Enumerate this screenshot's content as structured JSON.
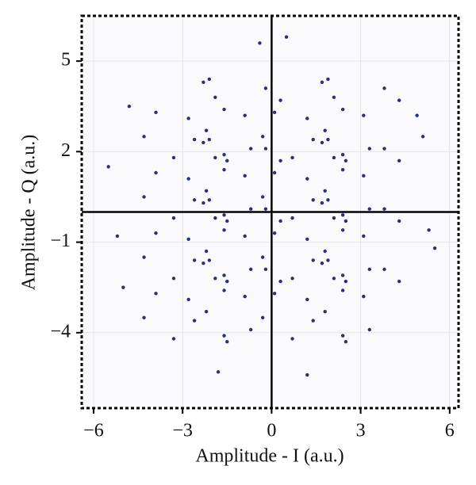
{
  "chart_data": {
    "type": "scatter",
    "x_label": "Amplitude - I (a.u.)",
    "y_label": "Amplitude - Q (a.u.)",
    "xlim": [
      -6.4,
      6.3
    ],
    "ylim": [
      -6.5,
      6.5
    ],
    "xticks": [
      {
        "value": -6,
        "label": "−6"
      },
      {
        "value": -3,
        "label": "−3"
      },
      0,
      3,
      6
    ],
    "yticks": [
      {
        "value": -4,
        "label": "−4"
      },
      {
        "value": -1,
        "label": "−1"
      },
      2,
      5
    ],
    "grid": true,
    "series": [
      {
        "color": "#2b2d85",
        "x": [
          -2.6,
          -3.9,
          -1.9,
          -3.3,
          -2.3,
          -4.3,
          -2.8,
          -1.6,
          -1.6,
          -0.7,
          -0.2,
          -2.2,
          0.3,
          -1.5,
          -0.9,
          -2.1,
          1.4,
          0.1,
          2.1,
          0.7,
          1.7,
          -0.3,
          1.2,
          2.4,
          2.4,
          3.3,
          3.8,
          1.8,
          4.3,
          2.5,
          3.1,
          1.9,
          -2.6,
          -3.9,
          -1.9,
          -3.3,
          -2.3,
          -4.3,
          -2.8,
          -1.6,
          -1.6,
          -0.7,
          -0.2,
          -2.2,
          0.3,
          -1.5,
          -0.9,
          -2.1,
          1.4,
          0.1,
          2.1,
          0.7,
          1.7,
          -0.3,
          1.2,
          2.4,
          2.4,
          3.3,
          3.8,
          1.8,
          4.3,
          2.5,
          3.1,
          1.9,
          -2.6,
          -3.9,
          -1.9,
          -3.3,
          -2.3,
          -4.3,
          -2.8,
          -1.6,
          -1.6,
          -0.7,
          -0.2,
          -2.2,
          0.3,
          -1.5,
          -0.9,
          -2.1,
          1.4,
          0.1,
          2.1,
          0.7,
          1.7,
          -0.3,
          1.2,
          2.4,
          2.4,
          3.3,
          3.8,
          1.8,
          4.3,
          2.5,
          3.1,
          1.9,
          -2.6,
          -3.9,
          -1.9,
          -3.3,
          -2.3,
          -4.3,
          -2.8,
          -1.6,
          -1.6,
          -0.7,
          -0.2,
          -2.2,
          0.3,
          -1.5,
          -0.9,
          -2.1,
          1.4,
          0.1,
          2.1,
          0.7,
          1.7,
          -0.3,
          1.2,
          2.4,
          2.4,
          3.3,
          3.8,
          1.8,
          4.3,
          2.5,
          3.1,
          1.9,
          -5.5,
          -5.2,
          5.3,
          5.5,
          -4.8,
          4.9,
          0.5,
          -0.4,
          1.2,
          -1.8,
          -5.0,
          5.1
        ],
        "y": [
          2.4,
          3.3,
          3.8,
          1.8,
          4.3,
          2.5,
          3.1,
          1.9,
          3.4,
          2.1,
          4.1,
          2.7,
          3.7,
          1.7,
          3.2,
          4.4,
          2.4,
          3.3,
          3.8,
          1.8,
          4.3,
          2.5,
          3.1,
          1.9,
          3.4,
          2.1,
          4.1,
          2.7,
          3.7,
          1.7,
          3.2,
          4.4,
          0.4,
          1.3,
          1.8,
          -0.2,
          2.3,
          0.5,
          1.1,
          -0.1,
          1.4,
          0.1,
          2.1,
          0.7,
          1.7,
          -0.3,
          1.2,
          2.4,
          0.4,
          1.3,
          1.8,
          -0.2,
          2.3,
          0.5,
          1.1,
          -0.1,
          1.4,
          0.1,
          2.1,
          0.7,
          1.7,
          -0.3,
          1.2,
          2.4,
          -1.6,
          -0.7,
          -0.2,
          -2.2,
          0.3,
          -1.5,
          -0.9,
          -2.1,
          -0.6,
          -1.9,
          0.1,
          -1.3,
          -0.3,
          -2.3,
          -0.8,
          0.4,
          -1.6,
          -0.7,
          -0.2,
          -2.2,
          0.3,
          -1.5,
          -0.9,
          -2.1,
          -0.6,
          -1.9,
          0.1,
          -1.3,
          -0.3,
          -2.3,
          -0.8,
          0.4,
          -3.6,
          -2.7,
          -2.2,
          -4.2,
          -1.7,
          -3.5,
          -2.9,
          -4.1,
          -2.6,
          -3.9,
          -1.9,
          -3.3,
          -2.3,
          -4.3,
          -2.8,
          -1.6,
          -3.6,
          -2.7,
          -2.2,
          -4.2,
          -1.7,
          -3.5,
          -2.9,
          -4.1,
          -2.6,
          -3.9,
          -1.9,
          -3.3,
          -2.3,
          -4.3,
          -2.8,
          -1.6,
          1.5,
          -0.8,
          -0.6,
          -1.2,
          3.5,
          3.2,
          5.8,
          5.6,
          -5.4,
          -5.3,
          -2.5,
          2.5
        ]
      }
    ]
  }
}
